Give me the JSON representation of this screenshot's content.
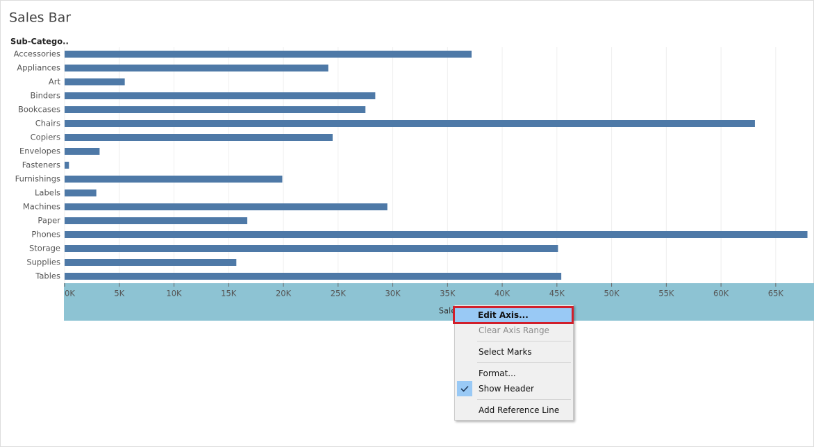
{
  "chart_data": {
    "type": "bar",
    "orientation": "horizontal",
    "title": "Sales Bar",
    "category_header": "Sub-Catego..",
    "x_label": "Sales",
    "categories": [
      "Accessories",
      "Appliances",
      "Art",
      "Binders",
      "Bookcases",
      "Chairs",
      "Copiers",
      "Envelopes",
      "Fasteners",
      "Furnishings",
      "Labels",
      "Machines",
      "Paper",
      "Phones",
      "Storage",
      "Supplies",
      "Tables"
    ],
    "values": [
      37200,
      24100,
      5500,
      28400,
      27500,
      63100,
      24500,
      3200,
      400,
      19900,
      2900,
      29500,
      16700,
      67900,
      45100,
      15700,
      45400
    ],
    "color": "#4e79a7",
    "xlim": [
      0,
      68500
    ],
    "xticks": [
      {
        "value": 0,
        "label": "0K"
      },
      {
        "value": 5000,
        "label": "5K"
      },
      {
        "value": 10000,
        "label": "10K"
      },
      {
        "value": 15000,
        "label": "15K"
      },
      {
        "value": 20000,
        "label": "20K"
      },
      {
        "value": 25000,
        "label": "25K"
      },
      {
        "value": 30000,
        "label": "30K"
      },
      {
        "value": 35000,
        "label": "35K"
      },
      {
        "value": 40000,
        "label": "40K"
      },
      {
        "value": 45000,
        "label": "45K"
      },
      {
        "value": 50000,
        "label": "50K"
      },
      {
        "value": 55000,
        "label": "55K"
      },
      {
        "value": 60000,
        "label": "60K"
      },
      {
        "value": 65000,
        "label": "65K"
      }
    ],
    "grid": true
  },
  "context_menu": {
    "groups": [
      [
        {
          "label": "Edit Axis...",
          "highlighted": true
        },
        {
          "label": "Clear Axis Range",
          "disabled": true
        }
      ],
      [
        {
          "label": "Select Marks"
        }
      ],
      [
        {
          "label": "Format..."
        },
        {
          "label": "Show Header",
          "checked": true
        }
      ],
      [
        {
          "label": "Add Reference Line"
        }
      ]
    ]
  }
}
